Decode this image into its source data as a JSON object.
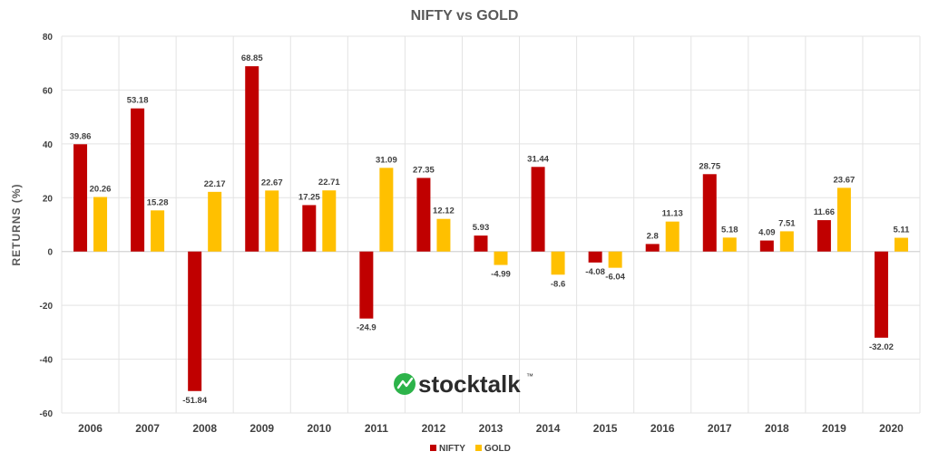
{
  "chart_data": {
    "type": "bar",
    "title": "NIFTY vs GOLD",
    "ylabel": "RETURNS (%)",
    "xlabel": "",
    "ylim": [
      -60,
      80
    ],
    "yticks": [
      -60,
      -40,
      -20,
      0,
      20,
      40,
      60,
      80
    ],
    "grid": true,
    "legend_position": "bottom",
    "categories": [
      "2006",
      "2007",
      "2008",
      "2009",
      "2010",
      "2011",
      "2012",
      "2013",
      "2014",
      "2015",
      "2016",
      "2017",
      "2018",
      "2019",
      "2020"
    ],
    "series": [
      {
        "name": "NIFTY",
        "color": "#C00000",
        "values": [
          39.86,
          53.18,
          -51.84,
          68.85,
          17.25,
          -24.9,
          27.35,
          5.93,
          31.44,
          -4.08,
          2.8,
          28.75,
          4.09,
          11.66,
          -32.02
        ]
      },
      {
        "name": "GOLD",
        "color": "#FFC000",
        "values": [
          20.26,
          15.28,
          22.17,
          22.67,
          22.71,
          31.09,
          12.12,
          -4.99,
          -8.6,
          -6.04,
          11.13,
          5.18,
          7.51,
          23.67,
          5.11
        ]
      }
    ]
  },
  "watermark": {
    "text": "stocktalk",
    "trademark": "™",
    "color": "#2db34a"
  }
}
